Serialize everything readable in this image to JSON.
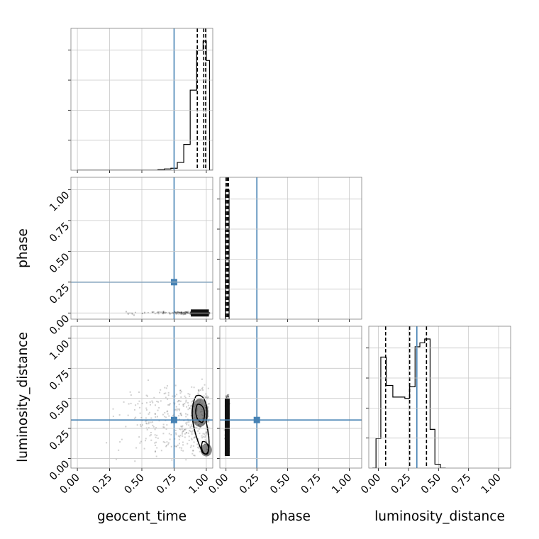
{
  "chart_data": {
    "type": "corner",
    "parameters": [
      "geocent_time",
      "phase",
      "luminosity_distance"
    ],
    "axis_labels": {
      "x": [
        "geocent_time",
        "phase",
        "luminosity_distance"
      ],
      "y": [
        "",
        "phase",
        "luminosity_distance"
      ]
    },
    "ticks": {
      "values": [
        0.0,
        0.25,
        0.5,
        0.75,
        1.0
      ],
      "labels": [
        "0.00",
        "0.25",
        "0.50",
        "0.75",
        "1.00"
      ]
    },
    "axis_ranges": {
      "geocent_time": [
        -0.05,
        1.05
      ],
      "phase": [
        -0.05,
        1.1
      ],
      "luminosity_distance": [
        -0.08,
        1.1
      ]
    },
    "truth": {
      "geocent_time": 0.75,
      "phase": 0.25,
      "luminosity_distance": 0.32,
      "color": "#4682b4"
    },
    "quantiles": {
      "geocent_time": [
        0.93,
        0.98,
        0.995
      ],
      "phase": [
        0.0,
        0.01,
        0.02
      ],
      "luminosity_distance": [
        0.06,
        0.26,
        0.4
      ]
    },
    "histograms": {
      "geocent_time": {
        "edges": [
          0.0,
          0.625,
          0.675,
          0.725,
          0.775,
          0.825,
          0.875,
          0.925,
          0.975,
          1.0,
          1.025,
          1.05
        ],
        "density": [
          0.0,
          0.004,
          0.01,
          0.015,
          0.06,
          0.2,
          0.62,
          0.93,
          1.0,
          0.85,
          0.0
        ]
      },
      "phase": {
        "edges": [
          -0.005,
          0.025
        ],
        "density": [
          1.0
        ]
      },
      "luminosity_distance": {
        "edges": [
          -0.05,
          -0.02,
          0.02,
          0.065,
          0.12,
          0.22,
          0.26,
          0.305,
          0.345,
          0.385,
          0.43,
          0.47,
          0.515,
          0.56
        ],
        "density": [
          0.0,
          0.23,
          0.86,
          0.64,
          0.55,
          0.54,
          0.63,
          0.94,
          0.97,
          1.0,
          0.3,
          0.03,
          0.0
        ]
      }
    },
    "scatter_2d": {
      "geocent_time_vs_phase": {
        "x_range": [
          0.15,
          1.02
        ],
        "y_center": 0.0,
        "density_peak_x": 0.97
      },
      "geocent_time_vs_luminosity_distance": {
        "x_range": [
          0.1,
          1.02
        ],
        "y_range": [
          0.0,
          0.55
        ],
        "density_peak": [
          0.97,
          0.35
        ]
      },
      "phase_vs_luminosity_distance": {
        "x_range": [
          -0.01,
          0.03
        ],
        "y_range": [
          0.0,
          0.55
        ]
      }
    },
    "grid": true,
    "title": ""
  }
}
